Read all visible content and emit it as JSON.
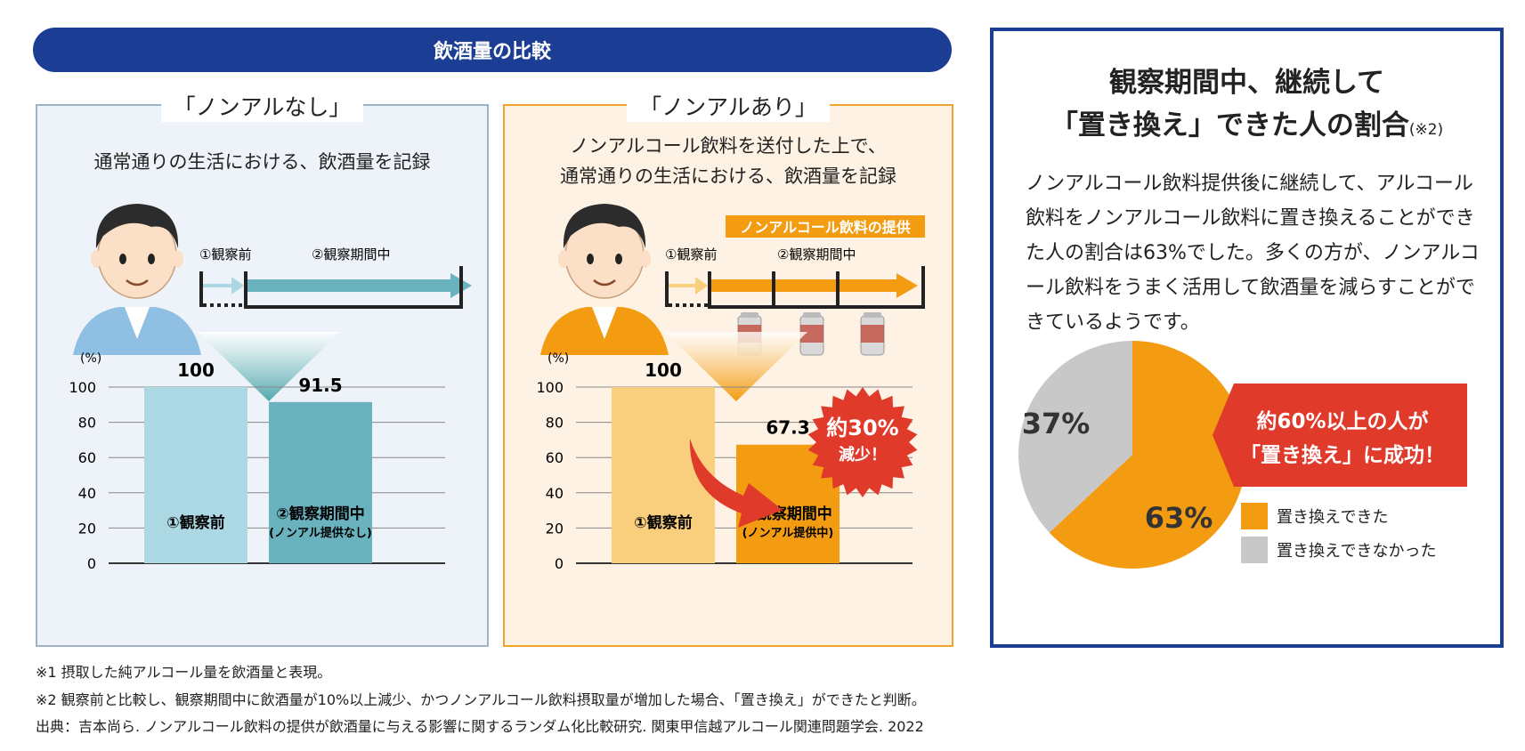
{
  "banner": {
    "title": "飲酒量の比較"
  },
  "left_panel": {
    "title": "「ノンアルなし」",
    "desc": "通常通りの生活における、飲酒量を記録",
    "timeline": {
      "before": "①観察前",
      "during": "②観察期間中"
    }
  },
  "mid_panel": {
    "title": "「ノンアルあり」",
    "desc_line1": "ノンアルコール飲料を送付した上で、",
    "desc_line2": "通常通りの生活における、飲酒量を記録",
    "provide_label": "ノンアルコール飲料の提供",
    "timeline": {
      "before": "①観察前",
      "during": "②観察期間中"
    },
    "badge_line1": "約30%",
    "badge_line2": "減少！"
  },
  "right_panel": {
    "title_line1": "観察期間中、継続して",
    "title_line2": "「置き換え」できた人の割合",
    "title_note": "(※2)",
    "body": "ノンアルコール飲料提供後に継続して、アルコール飲料をノンアルコール飲料に置き換えることができた人の割合は63%でした。多くの方が、ノンアルコール飲料をうまく活用して飲酒量を減らすことができているようです。",
    "callout_line1": "約60%以上の人が",
    "callout_line2": "「置き換え」に成功！"
  },
  "footnotes": {
    "n1": "※1 摂取した純アルコール量を飲酒量と表現。",
    "n2": "※2 観察前と比較し、観察期間中に飲酒量が10%以上減少、かつノンアルコール飲料摂取量が増加した場合、「置き換え」ができたと判断。",
    "source": "出典：吉本尚ら. ノンアルコール飲料の提供が飲酒量に与える影響に関するランダム化比較研究. 関東甲信越アルコール関連問題学会. 2022"
  },
  "colors": {
    "navy": "#1b3d94",
    "left_bar1": "#acd8e3",
    "left_bar2": "#6ab2be",
    "mid_bar1": "#f9cf7d",
    "mid_bar2": "#f39c12",
    "pie_replaced": "#f39c12",
    "pie_not": "#c8c8c8",
    "red": "#e03a2b"
  },
  "chart_data": [
    {
      "type": "bar",
      "ylabel": "(%)",
      "ylim": [
        0,
        100
      ],
      "yticks": [
        0,
        20,
        40,
        60,
        80,
        100
      ],
      "categories": [
        "①観察前",
        "②観察期間中"
      ],
      "category_sub": [
        "",
        "(ノンアル提供なし)"
      ],
      "values": [
        100,
        91.5
      ],
      "value_labels": [
        "100",
        "91.5"
      ],
      "colors": [
        "#acd8e3",
        "#6ab2be"
      ]
    },
    {
      "type": "bar",
      "ylabel": "(%)",
      "ylim": [
        0,
        100
      ],
      "yticks": [
        0,
        20,
        40,
        60,
        80,
        100
      ],
      "categories": [
        "①観察前",
        "②観察期間中"
      ],
      "category_sub": [
        "",
        "(ノンアル提供中)"
      ],
      "values": [
        100,
        67.3
      ],
      "value_labels": [
        "100",
        "67.3"
      ],
      "colors": [
        "#f9cf7d",
        "#f39c12"
      ]
    },
    {
      "type": "pie",
      "values": [
        63,
        37
      ],
      "value_labels": [
        "63%",
        "37%"
      ],
      "legend": [
        "置き換えできた",
        "置き換えできなかった"
      ],
      "colors": [
        "#f39c12",
        "#c8c8c8"
      ],
      "legend_position": "bottom-right"
    }
  ]
}
